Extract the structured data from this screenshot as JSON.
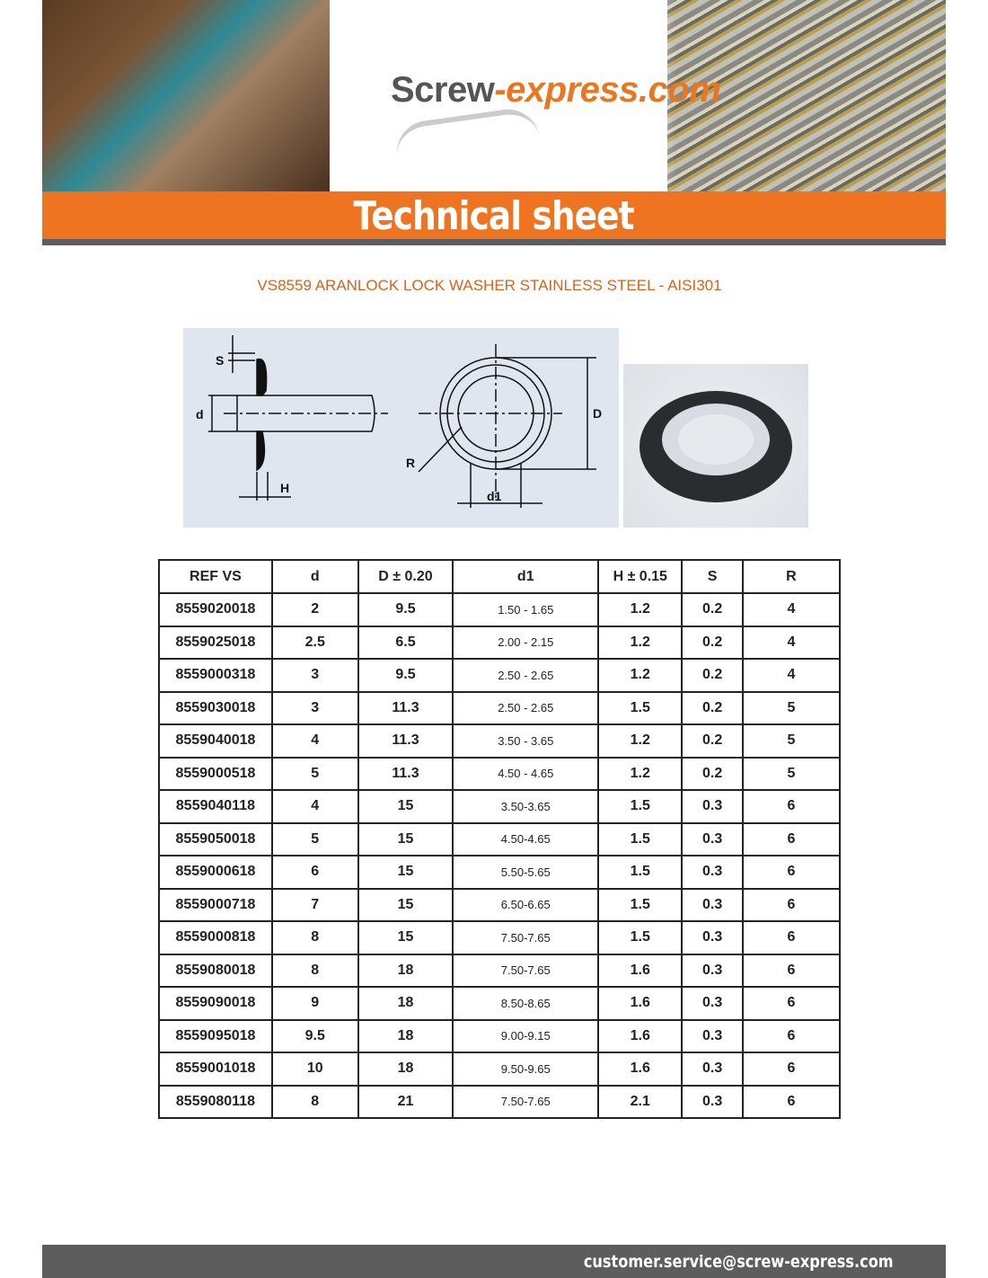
{
  "header": {
    "logo_main": "Screw",
    "logo_accent": "-express.com",
    "banner_title": "Technical sheet"
  },
  "product_title": "VS8559 ARANLOCK LOCK WASHER STAINLESS STEEL - AISI301",
  "drawing_labels": {
    "s": "S",
    "d": "d",
    "h": "H",
    "r": "R",
    "d1": "d1",
    "D": "D"
  },
  "table": {
    "headers": [
      "REF VS",
      "d",
      "D ± 0.20",
      "d1",
      "H ± 0.15",
      "S",
      "R"
    ],
    "rows": [
      [
        "8559020018",
        "2",
        "9.5",
        "1.50 - 1.65",
        "1.2",
        "0.2",
        "4"
      ],
      [
        "8559025018",
        "2.5",
        "6.5",
        "2.00 - 2.15",
        "1.2",
        "0.2",
        "4"
      ],
      [
        "8559000318",
        "3",
        "9.5",
        "2.50 - 2.65",
        "1.2",
        "0.2",
        "4"
      ],
      [
        "8559030018",
        "3",
        "11.3",
        "2.50 - 2.65",
        "1.5",
        "0.2",
        "5"
      ],
      [
        "8559040018",
        "4",
        "11.3",
        "3.50 - 3.65",
        "1.2",
        "0.2",
        "5"
      ],
      [
        "8559000518",
        "5",
        "11.3",
        "4.50 - 4.65",
        "1.2",
        "0.2",
        "5"
      ],
      [
        "8559040118",
        "4",
        "15",
        "3.50-3.65",
        "1.5",
        "0.3",
        "6"
      ],
      [
        "8559050018",
        "5",
        "15",
        "4.50-4.65",
        "1.5",
        "0.3",
        "6"
      ],
      [
        "8559000618",
        "6",
        "15",
        "5.50-5.65",
        "1.5",
        "0.3",
        "6"
      ],
      [
        "8559000718",
        "7",
        "15",
        "6.50-6.65",
        "1.5",
        "0.3",
        "6"
      ],
      [
        "8559000818",
        "8",
        "15",
        "7.50-7.65",
        "1.5",
        "0.3",
        "6"
      ],
      [
        "8559080018",
        "8",
        "18",
        "7.50-7.65",
        "1.6",
        "0.3",
        "6"
      ],
      [
        "8559090018",
        "9",
        "18",
        "8.50-8.65",
        "1.6",
        "0.3",
        "6"
      ],
      [
        "8559095018",
        "9.5",
        "18",
        "9.00-9.15",
        "1.6",
        "0.3",
        "6"
      ],
      [
        "8559001018",
        "10",
        "18",
        "9.50-9.65",
        "1.6",
        "0.3",
        "6"
      ],
      [
        "8559080118",
        "8",
        "21",
        "7.50-7.65",
        "2.1",
        "0.3",
        "6"
      ]
    ]
  },
  "footer": {
    "email": "customer.service@screw-express.com"
  },
  "colors": {
    "accent": "#ef7422",
    "title": "#d9621c",
    "dark_bar": "#5d5d5d"
  }
}
